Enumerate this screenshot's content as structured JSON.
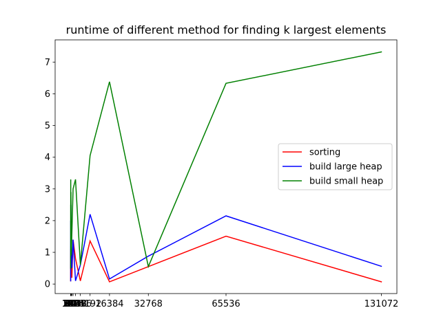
{
  "chart_data": {
    "type": "line",
    "title": "runtime of different method for finding k largest elements",
    "xlabel": "",
    "ylabel": "",
    "x": [
      2,
      4,
      8,
      16,
      32,
      64,
      128,
      256,
      512,
      1024,
      2048,
      4096,
      8192,
      16384,
      32768,
      65536,
      131072
    ],
    "xticks": [
      2,
      4,
      8,
      16,
      32,
      64,
      128,
      256,
      512,
      1024,
      2048,
      4096,
      8192,
      16384,
      32768,
      65536,
      131072
    ],
    "xlim": [
      -6551.5,
      137625.5
    ],
    "yticks": [
      0,
      1,
      2,
      3,
      4,
      5,
      6,
      7
    ],
    "ylim": [
      -0.3,
      7.7
    ],
    "grid": false,
    "legend_position": "center-right",
    "series": [
      {
        "name": "sorting",
        "color": "#ff0000",
        "values": [
          0.1,
          0.6,
          0.2,
          0.8,
          1.1,
          0.5,
          0.3,
          0.9,
          0.2,
          1.4,
          0.8,
          0.1,
          1.36,
          0.07,
          0.55,
          1.51,
          0.07
        ]
      },
      {
        "name": "build large heap",
        "color": "#0000ff",
        "values": [
          0.1,
          1.2,
          0.6,
          2.0,
          1.5,
          0.8,
          2.5,
          1.0,
          0.5,
          1.4,
          0.1,
          0.6,
          2.2,
          0.16,
          0.88,
          2.15,
          0.56
        ]
      },
      {
        "name": "build small heap",
        "color": "#008000",
        "values": [
          0.5,
          1.8,
          2.5,
          0.8,
          3.3,
          1.2,
          2.9,
          0.9,
          1.6,
          3.0,
          3.3,
          0.6,
          4.05,
          6.38,
          0.55,
          6.33,
          7.32
        ]
      }
    ]
  }
}
